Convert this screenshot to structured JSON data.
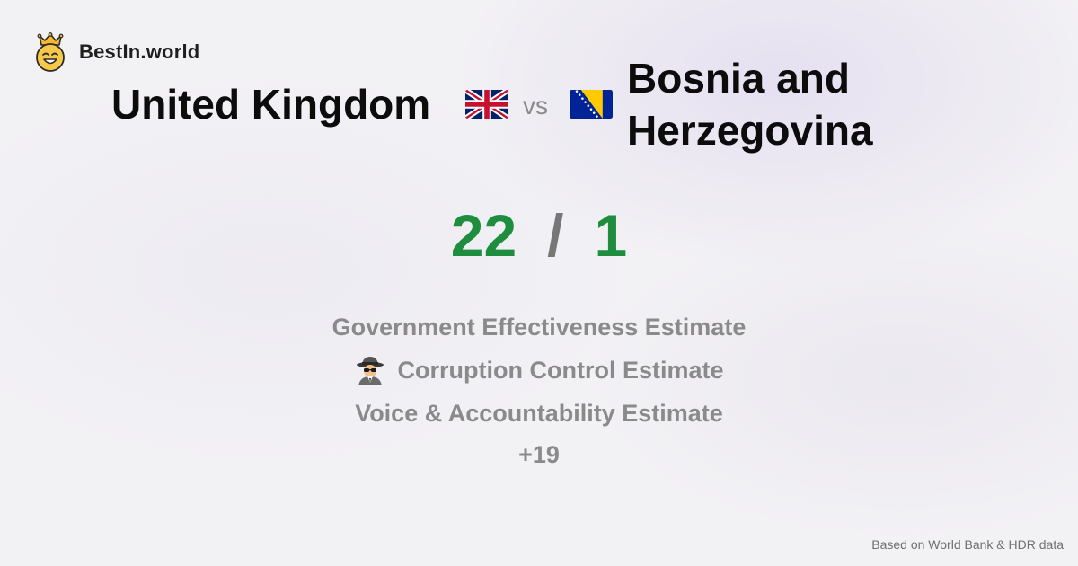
{
  "brand": {
    "name": "BestIn.world",
    "logo_icon": "crowned-smiley-icon"
  },
  "comparison": {
    "left_country": "United Kingdom",
    "left_flag_icon": "uk-flag-icon",
    "vs_label": "vs",
    "right_country": "Bosnia and Herzegovina",
    "right_flag_icon": "bosnia-flag-icon"
  },
  "score": {
    "left": "22",
    "separator": "/",
    "right": "1"
  },
  "metrics": [
    {
      "label": "Government Effectiveness Estimate",
      "icon": ""
    },
    {
      "label": "Corruption Control Estimate",
      "icon": "spy-icon"
    },
    {
      "label": "Voice & Accountability Estimate",
      "icon": ""
    }
  ],
  "more_label": "+19",
  "footer": "Based on World Bank & HDR data",
  "colors": {
    "winner": "#1e8e3e",
    "muted": "#8a8a8a",
    "title": "#0c0c0c"
  }
}
